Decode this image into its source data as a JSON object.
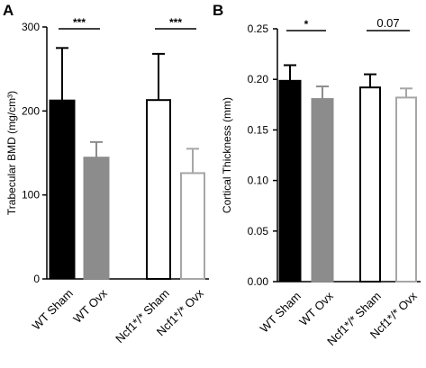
{
  "chart_data": [
    {
      "type": "bar",
      "panel": "A",
      "ylabel": "Trabecular BMD (mg/cm³)",
      "ylim": [
        0,
        300
      ],
      "yticks": [
        "0",
        "100",
        "200",
        "300"
      ],
      "categories": [
        "WT Sham",
        "WT Ovx",
        "Ncf1*/* Sham",
        "Ncf1*/* Ovx"
      ],
      "values": [
        213,
        145,
        213,
        126
      ],
      "errors": [
        62,
        18,
        55,
        29
      ],
      "bar_styles": [
        "solid-black",
        "solid-gray",
        "open-black",
        "open-gray"
      ],
      "significance": [
        {
          "pair": [
            0,
            1
          ],
          "label": "***"
        },
        {
          "pair": [
            2,
            3
          ],
          "label": "***"
        }
      ]
    },
    {
      "type": "bar",
      "panel": "B",
      "ylabel": "Cortical Thickness (mm)",
      "ylim": [
        0,
        0.25
      ],
      "yticks": [
        "0.00",
        "0.05",
        "0.10",
        "0.15",
        "0.20",
        "0.25"
      ],
      "categories": [
        "WT Sham",
        "WT Ovx",
        "Ncf1*/* Sham",
        "Ncf1*/* Ovx"
      ],
      "values": [
        0.199,
        0.181,
        0.192,
        0.182
      ],
      "errors": [
        0.015,
        0.012,
        0.013,
        0.009
      ],
      "bar_styles": [
        "solid-black",
        "solid-gray",
        "open-black",
        "open-gray"
      ],
      "significance": [
        {
          "pair": [
            0,
            1
          ],
          "label": "*"
        },
        {
          "pair": [
            2,
            3
          ],
          "label": "0.07"
        }
      ]
    }
  ],
  "colors": {
    "black": "#000000",
    "gray": "#8c8c8c",
    "light_gray": "#a6a6a6",
    "white": "#ffffff"
  }
}
